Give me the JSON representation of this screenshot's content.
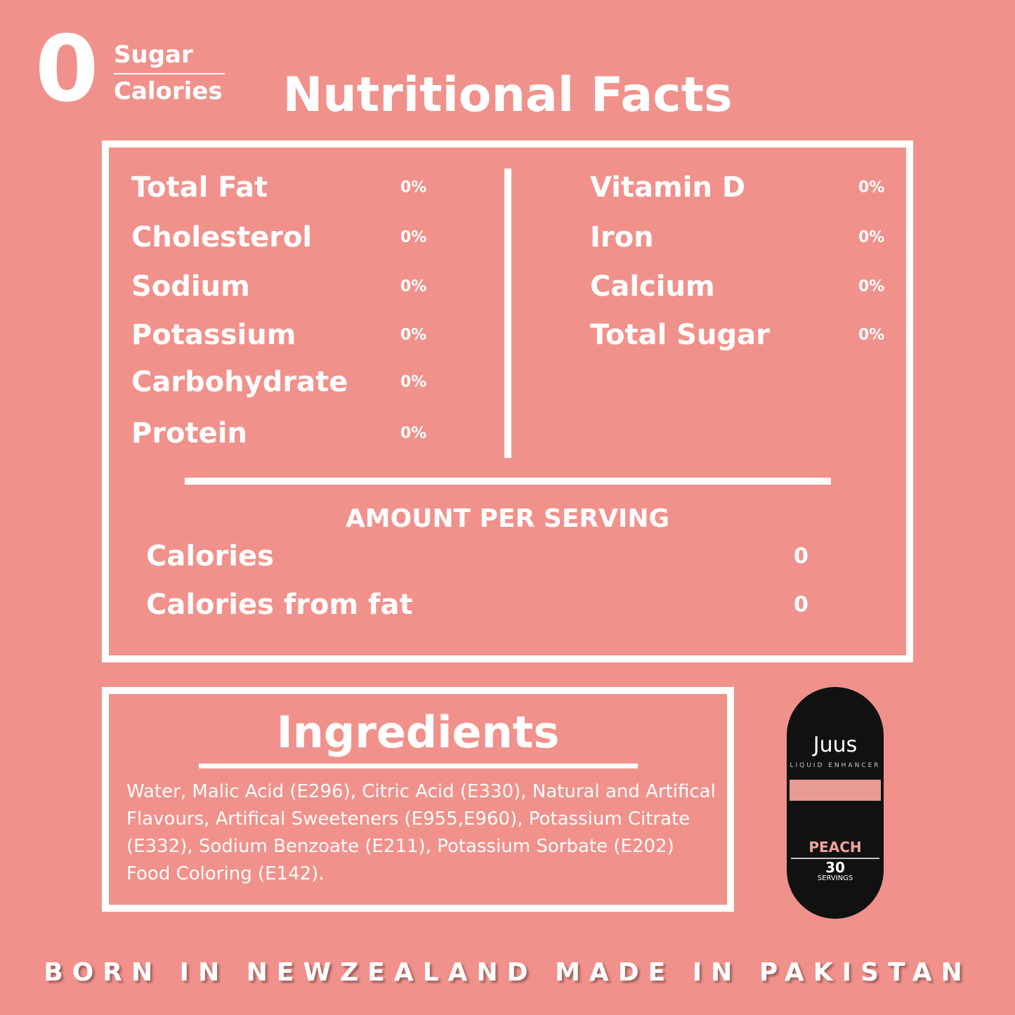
{
  "badge": {
    "digit": "0",
    "lines": [
      "Sugar",
      "Calories"
    ]
  },
  "title": "Nutritional Facts",
  "facts": {
    "left": [
      {
        "name": "Total Fat",
        "value": "0%"
      },
      {
        "name": "Cholesterol",
        "value": "0%"
      },
      {
        "name": "Sodium",
        "value": "0%"
      },
      {
        "name": "Potassium",
        "value": "0%"
      },
      {
        "name": "Carbohydrate",
        "value": "0%"
      },
      {
        "name": "Protein",
        "value": "0%"
      }
    ],
    "right": [
      {
        "name": "Vitamin D",
        "value": "0%"
      },
      {
        "name": "Iron",
        "value": "0%"
      },
      {
        "name": "Calcium",
        "value": "0%"
      },
      {
        "name": "Total Sugar",
        "value": "0%"
      }
    ],
    "serving_heading": "AMOUNT PER SERVING",
    "serving": [
      {
        "name": "Calories",
        "value": "0"
      },
      {
        "name": "Calories from fat",
        "value": "0"
      }
    ]
  },
  "ingredients": {
    "title": "Ingredients",
    "text": "Water, Malic Acid (E296), Citric Acid (E330), Natural and Artifical Flavours, Artifical Sweeteners (E955,E960), Potassium Citrate (E332), Sodium Benzoate (E211), Potassium Sorbate (E202) Food Coloring (E142)."
  },
  "product": {
    "brand": "Juus",
    "tagline": "LIQUID ENHANCER",
    "flavor": "PEACH",
    "count": "30",
    "count_unit": "SERVINGS"
  },
  "footer": "BORN IN NEWZEALAND MADE IN PAKISTAN"
}
